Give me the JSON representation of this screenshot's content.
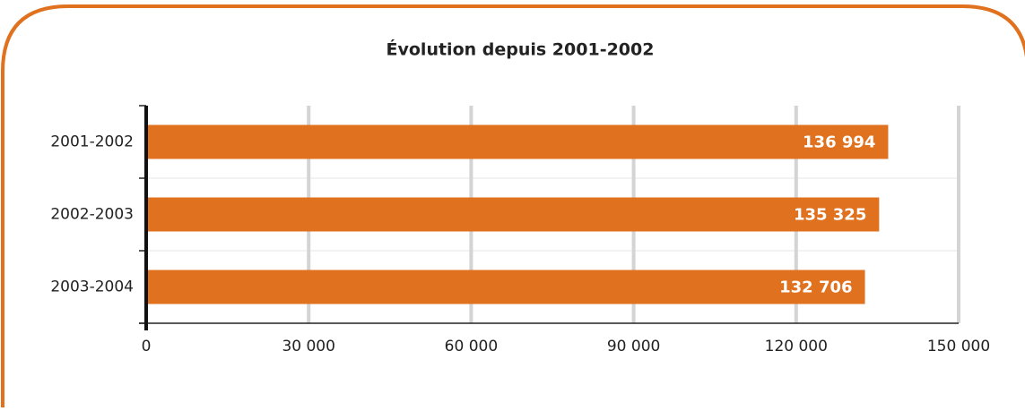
{
  "chart_data": {
    "type": "bar",
    "orientation": "horizontal",
    "title": "Évolution depuis 2001-2002",
    "categories": [
      "2001-2002",
      "2002-2003",
      "2003-2004"
    ],
    "values": [
      136994,
      135325,
      132706
    ],
    "value_labels": [
      "136 994",
      "135 325",
      "132 706"
    ],
    "color": "#e0711f",
    "xlim": [
      0,
      150000
    ],
    "xticks": [
      0,
      {
        "value": 30000,
        "label": "30 000"
      },
      {
        "value": 60000,
        "label": "60 000"
      },
      {
        "value": 90000,
        "label": "90 000"
      },
      {
        "value": 120000,
        "label": "120 000"
      },
      {
        "value": 150000,
        "label": "150 000"
      }
    ],
    "grid": true
  }
}
